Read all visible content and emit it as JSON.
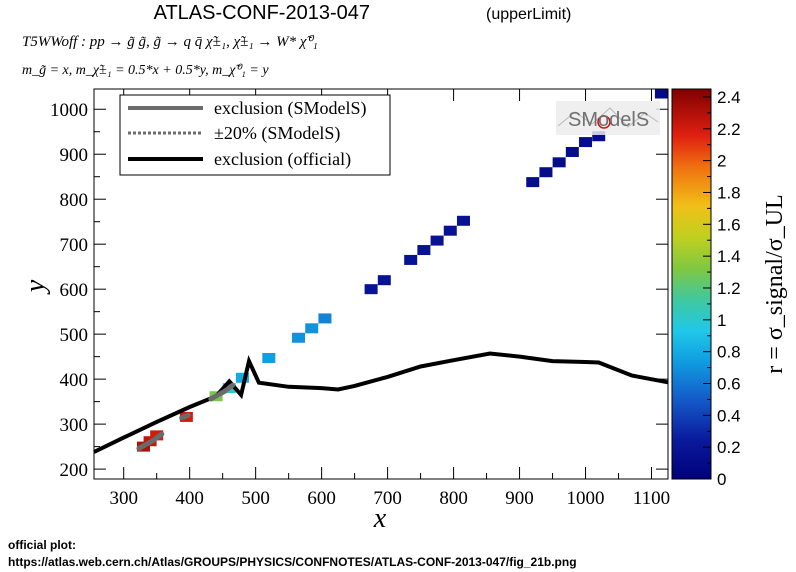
{
  "chart_data": {
    "type": "heatmap",
    "title": "ATLAS-CONF-2013-047",
    "title_note": "(upperLimit)",
    "subtitle_process": "T5WWoff : pp → g̃ g̃, g̃  → q q̄ χ̃±₁, χ̃±₁ → W* χ̃⁰₁",
    "subtitle_masses": "m_g̃ = x, m_χ̃±₁ = 0.5*x + 0.5*y, m_χ̃⁰₁ = y",
    "xlabel": "x",
    "ylabel": "y",
    "zlabel": "r = σ_signal/σ_UL",
    "xlim": [
      255,
      1125
    ],
    "ylim": [
      178,
      1045
    ],
    "zlim": [
      0,
      2.45
    ],
    "x_ticks": [
      300,
      400,
      500,
      600,
      700,
      800,
      900,
      1000,
      1100
    ],
    "y_ticks": [
      200,
      300,
      400,
      500,
      600,
      700,
      800,
      900,
      1000
    ],
    "z_ticks": [
      0,
      0.2,
      0.4,
      0.6,
      0.8,
      1,
      1.2,
      1.4,
      1.6,
      1.8,
      2,
      2.2,
      2.4
    ],
    "cells": [
      {
        "x": 330,
        "y": 250,
        "r": 2.3
      },
      {
        "x": 340,
        "y": 262,
        "r": 2.25
      },
      {
        "x": 350,
        "y": 275,
        "r": 2.2
      },
      {
        "x": 395,
        "y": 316,
        "r": 2.2
      },
      {
        "x": 440,
        "y": 362,
        "r": 1.3
      },
      {
        "x": 460,
        "y": 380,
        "r": 1.0
      },
      {
        "x": 480,
        "y": 403,
        "r": 0.8
      },
      {
        "x": 520,
        "y": 447,
        "r": 0.75
      },
      {
        "x": 565,
        "y": 492,
        "r": 0.7
      },
      {
        "x": 585,
        "y": 513,
        "r": 0.7
      },
      {
        "x": 605,
        "y": 535,
        "r": 0.65
      },
      {
        "x": 675,
        "y": 600,
        "r": 0.18
      },
      {
        "x": 695,
        "y": 620,
        "r": 0.18
      },
      {
        "x": 735,
        "y": 665,
        "r": 0.18
      },
      {
        "x": 755,
        "y": 687,
        "r": 0.18
      },
      {
        "x": 775,
        "y": 708,
        "r": 0.18
      },
      {
        "x": 795,
        "y": 730,
        "r": 0.18
      },
      {
        "x": 815,
        "y": 752,
        "r": 0.18
      },
      {
        "x": 920,
        "y": 838,
        "r": 0.12
      },
      {
        "x": 940,
        "y": 860,
        "r": 0.12
      },
      {
        "x": 960,
        "y": 882,
        "r": 0.12
      },
      {
        "x": 980,
        "y": 905,
        "r": 0.12
      },
      {
        "x": 1000,
        "y": 927,
        "r": 0.12
      },
      {
        "x": 1020,
        "y": 940,
        "r": 0.12
      },
      {
        "x": 1115,
        "y": 1035,
        "r": 0.1
      }
    ],
    "series": [
      {
        "name": "exclusion (official)",
        "points": [
          [
            255,
            238
          ],
          [
            300,
            270
          ],
          [
            350,
            305
          ],
          [
            400,
            338
          ],
          [
            440,
            362
          ],
          [
            460,
            395
          ],
          [
            478,
            365
          ],
          [
            490,
            440
          ],
          [
            505,
            392
          ],
          [
            550,
            383
          ],
          [
            600,
            380
          ],
          [
            625,
            377
          ],
          [
            650,
            385
          ],
          [
            700,
            405
          ],
          [
            750,
            428
          ],
          [
            800,
            442
          ],
          [
            855,
            457
          ],
          [
            900,
            450
          ],
          [
            950,
            440
          ],
          [
            1000,
            438
          ],
          [
            1020,
            437
          ],
          [
            1070,
            408
          ],
          [
            1125,
            393
          ]
        ]
      },
      {
        "name": "exclusion (SModelS)",
        "segments": [
          [
            [
              323,
              246
            ],
            [
              345,
              264
            ],
            [
              358,
              278
            ]
          ],
          [
            [
              388,
              314
            ],
            [
              402,
              322
            ]
          ],
          [
            [
              432,
              356
            ],
            [
              452,
              372
            ],
            [
              465,
              386
            ]
          ]
        ]
      },
      {
        "name": "±20% (SModelS)",
        "segments": []
      }
    ],
    "legend": {
      "placement": "top-left",
      "entries": [
        {
          "label": "exclusion (SModelS)",
          "style": "solid-gray"
        },
        {
          "label": "±20% (SModelS)",
          "style": "dotted-gray"
        },
        {
          "label": "exclusion (official)",
          "style": "solid-black"
        }
      ]
    },
    "logo_text": "SModelS",
    "grid": false
  },
  "footer": {
    "label": "official plot:",
    "url": "https://atlas.web.cern.ch/Atlas/GROUPS/PHYSICS/CONFNOTES/ATLAS-CONF-2013-047/fig_21b.png"
  }
}
